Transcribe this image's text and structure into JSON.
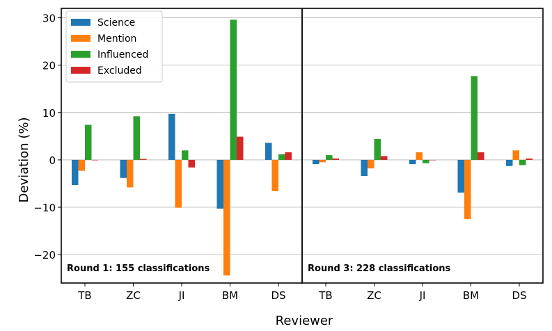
{
  "chart_data": {
    "type": "bar",
    "xlabel": "Reviewer",
    "ylabel": "Deviation (%)",
    "ylim": [
      -26,
      32
    ],
    "yticks": [
      -20,
      -10,
      0,
      10,
      20,
      30
    ],
    "ytick_labels": [
      "−20",
      "−10",
      "0",
      "10",
      "20",
      "30"
    ],
    "grid": "y",
    "legend_position": "top-left",
    "series_colors": [
      "#1f77b4",
      "#ff7f0e",
      "#2ca02c",
      "#d62728"
    ],
    "panels": [
      {
        "annotation": "Round 1: 155 classifications",
        "categories": [
          "TB",
          "ZC",
          "JI",
          "BM",
          "DS"
        ],
        "series": [
          {
            "name": "Science",
            "values": [
              -5.3,
              -3.8,
              9.7,
              -10.3,
              3.6
            ]
          },
          {
            "name": "Mention",
            "values": [
              -2.3,
              -5.8,
              -10.1,
              -24.4,
              -6.6
            ]
          },
          {
            "name": "Influenced",
            "values": [
              7.4,
              9.2,
              2.0,
              29.6,
              1.2
            ]
          },
          {
            "name": "Excluded",
            "values": [
              0.0,
              0.2,
              -1.6,
              4.9,
              1.6
            ]
          }
        ]
      },
      {
        "annotation": "Round 3: 228 classifications",
        "categories": [
          "TB",
          "ZC",
          "JI",
          "BM",
          "DS"
        ],
        "series": [
          {
            "name": "Science",
            "values": [
              -0.9,
              -3.4,
              -0.9,
              -6.9,
              -1.3
            ]
          },
          {
            "name": "Mention",
            "values": [
              -0.5,
              -1.8,
              1.6,
              -12.5,
              2.0
            ]
          },
          {
            "name": "Influenced",
            "values": [
              1.0,
              4.4,
              -0.7,
              17.7,
              -1.1
            ]
          },
          {
            "name": "Excluded",
            "values": [
              0.3,
              0.8,
              0.0,
              1.6,
              0.3
            ]
          }
        ]
      }
    ]
  }
}
